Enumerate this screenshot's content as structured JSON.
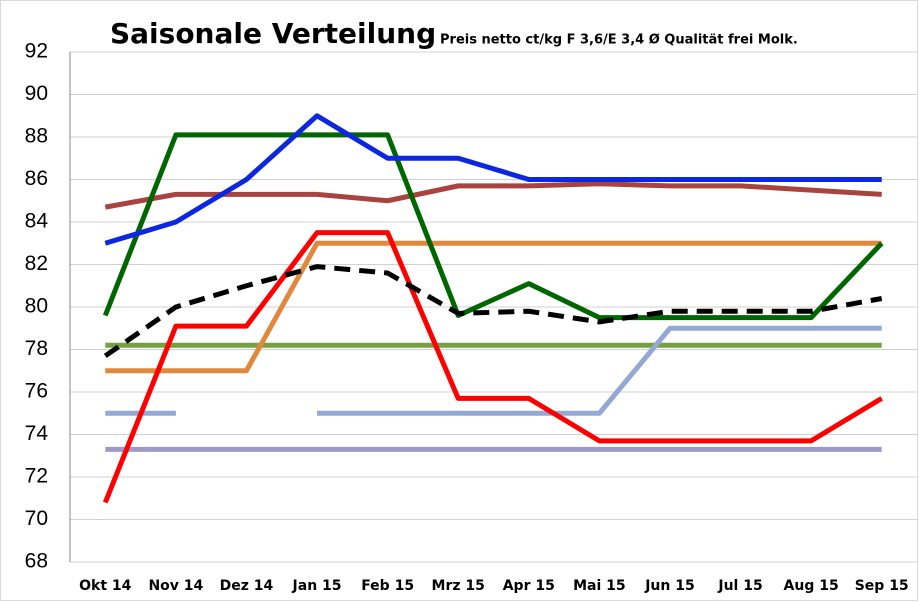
{
  "chart_data": {
    "type": "line",
    "title": "Saisonale Verteilung",
    "subtitle": "Preis netto ct/kg F 3,6/E 3,4 Ø Qualität frei Molk.",
    "categories": [
      "Okt 14",
      "Nov 14",
      "Dez 14",
      "Jan 15",
      "Feb 15",
      "Mrz 15",
      "Apr 15",
      "Mai 15",
      "Jun 15",
      "Jul 15",
      "Aug 15",
      "Sep 15"
    ],
    "ylim": [
      68,
      92
    ],
    "yticks": [
      68,
      70,
      72,
      74,
      76,
      78,
      80,
      82,
      84,
      86,
      88,
      90,
      92
    ],
    "grid": true,
    "series": [
      {
        "color": "#9e9ac8",
        "values": [
          73.3,
          73.3,
          73.3,
          73.3,
          73.3,
          73.3,
          73.3,
          73.3,
          73.3,
          73.3,
          73.3,
          73.3
        ]
      },
      {
        "color": "#77a040",
        "values": [
          78.2,
          78.2,
          78.2,
          78.2,
          78.2,
          78.2,
          78.2,
          78.2,
          78.2,
          78.2,
          78.2,
          78.2
        ]
      },
      {
        "color": "#93a9d3",
        "values": [
          75,
          75,
          null,
          75,
          75,
          75,
          75,
          75,
          79,
          79,
          79,
          79
        ]
      },
      {
        "color": "#e0883c",
        "values": [
          77,
          77,
          77,
          83,
          83,
          83,
          83,
          83,
          83,
          83,
          83,
          83
        ]
      },
      {
        "color": "#a9433f",
        "values": [
          84.7,
          85.3,
          85.3,
          85.3,
          85,
          85.7,
          85.7,
          85.8,
          85.7,
          85.7,
          85.5,
          85.3
        ]
      },
      {
        "color": "#ff0000",
        "values": [
          70.8,
          79.1,
          79.1,
          83.5,
          83.5,
          75.7,
          75.7,
          73.7,
          73.7,
          73.7,
          73.7,
          75.7
        ]
      },
      {
        "color": "#006600",
        "values": [
          79.6,
          88.1,
          88.1,
          88.1,
          88.1,
          79.6,
          81.1,
          79.5,
          79.5,
          79.5,
          79.5,
          83
        ]
      },
      {
        "color": "#0b28e0",
        "values": [
          83,
          84,
          86,
          89,
          87,
          87,
          86,
          86,
          86,
          86,
          86,
          86
        ]
      },
      {
        "color": "#000000",
        "dashed": true,
        "values": [
          77.7,
          80,
          81,
          81.9,
          81.6,
          79.7,
          79.8,
          79.3,
          79.8,
          79.8,
          79.8,
          80.4
        ]
      }
    ]
  }
}
